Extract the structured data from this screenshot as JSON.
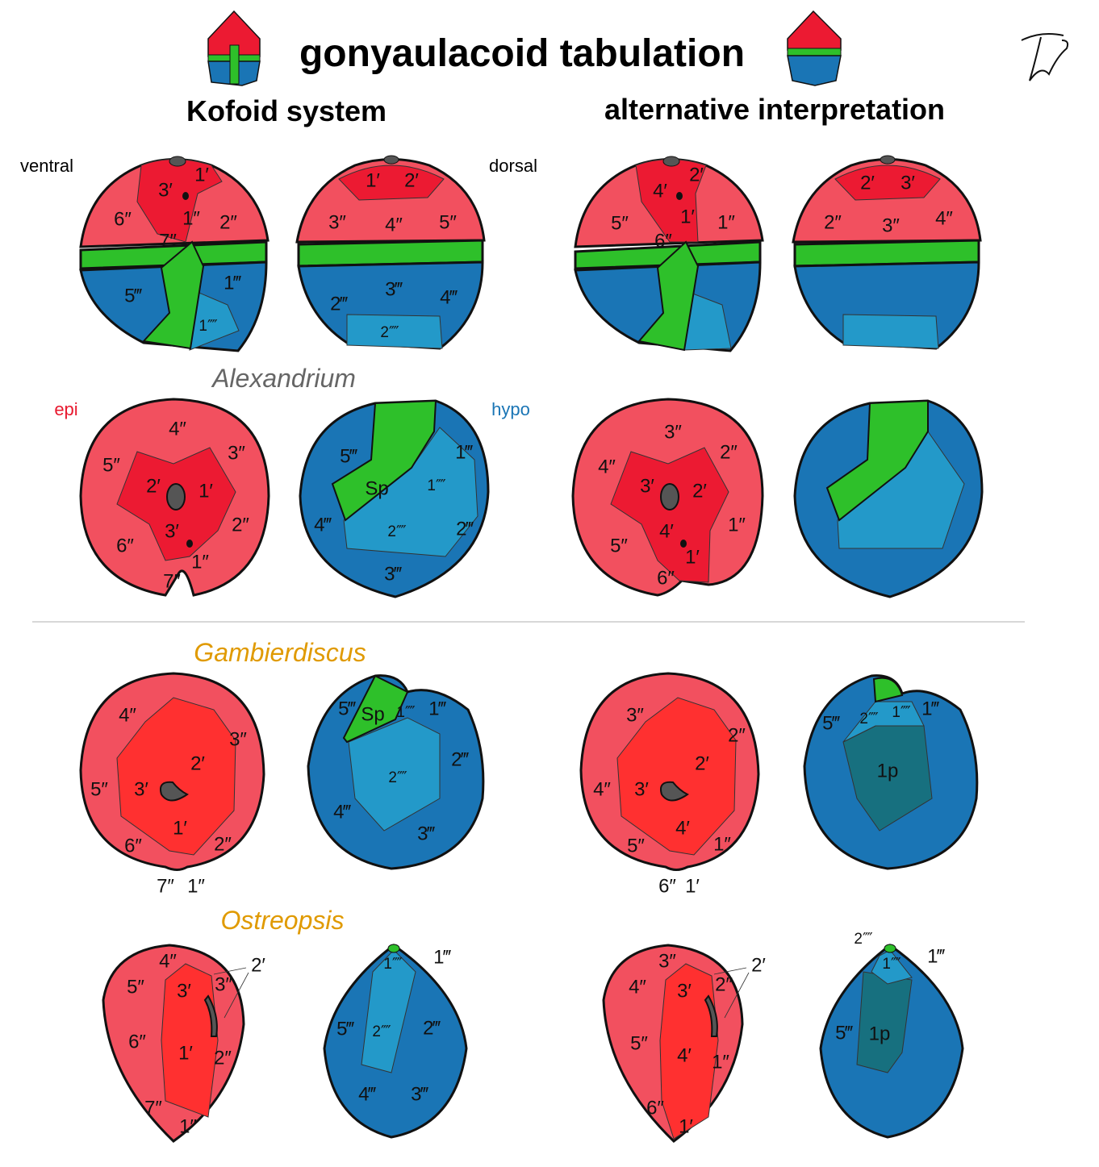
{
  "title": "gonyaulacoid tabulation",
  "headings": {
    "left": "Kofoid system",
    "right": "alternative interpretation"
  },
  "orientation": {
    "ventral": "ventral",
    "dorsal": "dorsal",
    "epi": "epi",
    "hypo": "hypo"
  },
  "genera": {
    "alexandrium": "Alexandrium",
    "gambierdiscus": "Gambierdiscus",
    "ostreopsis": "Ostreopsis"
  },
  "colors": {
    "epitheca": "#f2505f",
    "apical": "#ec1a32",
    "cingulum": "#2ec02a",
    "hypotheca": "#1a75b5",
    "antapical": "#2399c9",
    "posterior_intercalary": "#17707f",
    "genus_orange": "#e09a00",
    "genus_gray": "#666666",
    "epi_label": "#e8192f",
    "hypo_label": "#1a75b5"
  },
  "panels": [
    {
      "id": "kofoid-ventral",
      "labels": [
        "3′",
        "1′",
        "1″",
        "2″",
        "6″",
        "7″",
        "5‴",
        "1‴",
        "1⁗"
      ]
    },
    {
      "id": "kofoid-dorsal",
      "labels": [
        "1′",
        "2′",
        "3″",
        "4″",
        "5″",
        "3‴",
        "2‴",
        "4‴",
        "2⁗"
      ]
    },
    {
      "id": "alt-ventral",
      "labels": [
        "4′",
        "2′",
        "1′",
        "1″",
        "5″",
        "6″"
      ]
    },
    {
      "id": "alt-dorsal",
      "labels": [
        "2′",
        "3′",
        "2″",
        "3″",
        "4″"
      ]
    },
    {
      "id": "alexandrium-kofoid-epi",
      "labels": [
        "4″",
        "3″",
        "5″",
        "2′",
        "1′",
        "2″",
        "6″",
        "3′",
        "1″",
        "7″"
      ]
    },
    {
      "id": "alexandrium-kofoid-hypo",
      "labels": [
        "5‴",
        "1‴",
        "1⁗",
        "Sp",
        "4‴",
        "2⁗",
        "2‴",
        "3‴"
      ]
    },
    {
      "id": "alexandrium-alt-epi",
      "labels": [
        "3″",
        "2″",
        "4″",
        "3′",
        "2′",
        "1″",
        "5″",
        "4′",
        "1′",
        "6″"
      ]
    },
    {
      "id": "gambierdiscus-kofoid-epi",
      "labels": [
        "4″",
        "3″",
        "2′",
        "5″",
        "3′",
        "1′",
        "6″",
        "2″",
        "7″",
        "1″"
      ]
    },
    {
      "id": "gambierdiscus-kofoid-hypo",
      "labels": [
        "5‴",
        "Sp",
        "1⁗",
        "1‴",
        "2‴",
        "2⁗",
        "4‴",
        "3‴"
      ]
    },
    {
      "id": "gambierdiscus-alt-epi",
      "labels": [
        "3″",
        "2″",
        "2′",
        "4″",
        "3′",
        "4′",
        "5″",
        "1″",
        "6″",
        "1′"
      ]
    },
    {
      "id": "gambierdiscus-alt-hypo",
      "labels": [
        "5‴",
        "2⁗",
        "1⁗",
        "1‴",
        "1p"
      ]
    },
    {
      "id": "ostreopsis-kofoid-epi",
      "labels": [
        "4″",
        "5″",
        "3′",
        "3″",
        "6″",
        "1′",
        "2″",
        "7″",
        "1″",
        "2′"
      ]
    },
    {
      "id": "ostreopsis-kofoid-hypo",
      "labels": [
        "1⁗",
        "1‴",
        "5‴",
        "2⁗",
        "2‴",
        "4‴",
        "3‴"
      ]
    },
    {
      "id": "ostreopsis-alt-epi",
      "labels": [
        "3″",
        "4″",
        "3′",
        "2″",
        "5″",
        "4′",
        "1″",
        "6″",
        "1′",
        "2′"
      ]
    },
    {
      "id": "ostreopsis-alt-hypo",
      "labels": [
        "2⁗",
        "1⁗",
        "1‴",
        "5‴",
        "1p"
      ]
    }
  ]
}
